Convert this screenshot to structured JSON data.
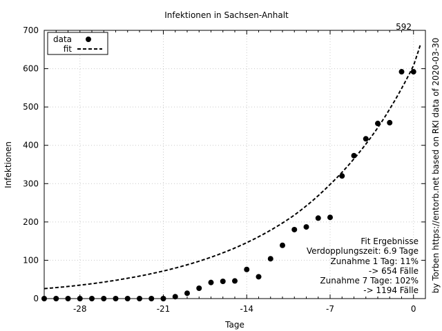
{
  "chart_data": {
    "type": "scatter",
    "title": "Infektionen in Sachsen-Anhalt",
    "xlabel": "Tage",
    "ylabel": "Infektionen",
    "xlim": [
      -31,
      1
    ],
    "ylim": [
      0,
      700
    ],
    "xticks": [
      -28,
      -21,
      -14,
      -7,
      0
    ],
    "yticks": [
      0,
      100,
      200,
      300,
      400,
      500,
      600,
      700
    ],
    "grid": true,
    "legend_position": "top-left",
    "series": [
      {
        "name": "data",
        "style": "points",
        "x": [
          -31,
          -30,
          -29,
          -28,
          -27,
          -26,
          -25,
          -24,
          -23,
          -22,
          -21,
          -20,
          -19,
          -18,
          -17,
          -16,
          -15,
          -14,
          -13,
          -12,
          -11,
          -10,
          -9,
          -8,
          -7,
          -6,
          -5,
          -4,
          -3,
          -2,
          -1,
          0
        ],
        "y": [
          0,
          0,
          0,
          0,
          0,
          0,
          0,
          0,
          0,
          0,
          0,
          5,
          14,
          27,
          42,
          45,
          46,
          76,
          57,
          104,
          139,
          180,
          187,
          210,
          212,
          320,
          373,
          417,
          457,
          459,
          592,
          592
        ]
      },
      {
        "name": "fit",
        "style": "dashed-line",
        "x": [
          -31,
          -28,
          -24,
          -21,
          -17,
          -14,
          -10,
          -7,
          -3,
          0,
          0.6
        ],
        "y": [
          26,
          35,
          53,
          72,
          108,
          146,
          218,
          298,
          446,
          608,
          665
        ]
      }
    ],
    "annotations": {
      "last_value_label": "592",
      "fit_box": [
        "Fit Ergebnisse",
        "Verdopplungszeit: 6.9 Tage",
        "Zunahme 1 Tag: 11%",
        "-> 654 Fälle",
        "Zunahme 7 Tage: 102%",
        "-> 1194 Fälle"
      ],
      "credit": "by Torben https://entorb.net based on RKI data of 2020-03-30"
    }
  },
  "colors": {
    "marks": "#000000",
    "grid": "#c8c8c8"
  }
}
